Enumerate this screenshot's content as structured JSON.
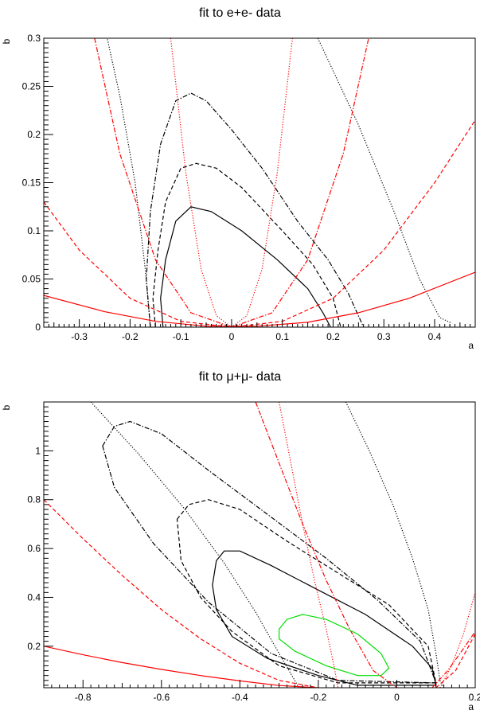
{
  "chart_data": [
    {
      "type": "line",
      "title": "fit to e+e- data",
      "xlabel": "a",
      "ylabel": "b",
      "xlim": [
        -0.37,
        0.48
      ],
      "ylim": [
        0,
        0.3
      ],
      "xticks": [
        -0.3,
        -0.2,
        -0.1,
        0,
        0.1,
        0.2,
        0.3,
        0.4
      ],
      "xtick_labels": [
        "-0.3",
        "-0.2",
        "-0.1",
        "0",
        "0.1",
        "0.2",
        "0.3",
        "0.4"
      ],
      "yticks": [
        0,
        0.05,
        0.1,
        0.15,
        0.2,
        0.25,
        0.3
      ],
      "ytick_labels": [
        "0",
        "0.05",
        "0.1",
        "0.15",
        "0.2",
        "0.25",
        "0.3"
      ],
      "grid": false,
      "series": [
        {
          "color": "#000000",
          "style": "solid",
          "points": [
            [
              -0.135,
              0
            ],
            [
              -0.14,
              0.03
            ],
            [
              -0.13,
              0.07
            ],
            [
              -0.11,
              0.11
            ],
            [
              -0.08,
              0.125
            ],
            [
              -0.04,
              0.12
            ],
            [
              0.02,
              0.1
            ],
            [
              0.09,
              0.07
            ],
            [
              0.15,
              0.04
            ],
            [
              0.18,
              0.015
            ],
            [
              0.195,
              0
            ]
          ]
        },
        {
          "color": "#000000",
          "style": "dashed",
          "points": [
            [
              -0.15,
              0
            ],
            [
              -0.155,
              0.03
            ],
            [
              -0.145,
              0.08
            ],
            [
              -0.13,
              0.13
            ],
            [
              -0.1,
              0.165
            ],
            [
              -0.07,
              0.17
            ],
            [
              -0.03,
              0.165
            ],
            [
              0.02,
              0.145
            ],
            [
              0.1,
              0.1
            ],
            [
              0.16,
              0.065
            ],
            [
              0.2,
              0.03
            ],
            [
              0.215,
              0
            ]
          ]
        },
        {
          "color": "#000000",
          "style": "dashdot",
          "points": [
            [
              -0.16,
              0
            ],
            [
              -0.168,
              0.05
            ],
            [
              -0.16,
              0.12
            ],
            [
              -0.14,
              0.19
            ],
            [
              -0.11,
              0.235
            ],
            [
              -0.08,
              0.243
            ],
            [
              -0.05,
              0.235
            ],
            [
              0.0,
              0.205
            ],
            [
              0.06,
              0.165
            ],
            [
              0.13,
              0.11
            ],
            [
              0.19,
              0.07
            ],
            [
              0.23,
              0.035
            ],
            [
              0.26,
              0
            ]
          ]
        },
        {
          "color": "#000000",
          "style": "dotted",
          "points": [
            [
              -0.16,
              0
            ],
            [
              -0.17,
              0.06
            ],
            [
              -0.19,
              0.15
            ],
            [
              -0.22,
              0.24
            ],
            [
              -0.245,
              0.3
            ]
          ]
        },
        {
          "color": "#000000",
          "style": "dotted",
          "points": [
            [
              0.17,
              0.3
            ],
            [
              0.25,
              0.21
            ],
            [
              0.32,
              0.12
            ],
            [
              0.37,
              0.05
            ],
            [
              0.41,
              0.01
            ],
            [
              0.43,
              0.005
            ],
            [
              0.43,
              0
            ]
          ]
        },
        {
          "color": "#ff0000",
          "style": "solid",
          "points": [
            [
              -0.37,
              0.033
            ],
            [
              -0.25,
              0.016
            ],
            [
              -0.15,
              0.006
            ],
            [
              -0.05,
              0.001
            ],
            [
              0.05,
              0.001
            ],
            [
              0.15,
              0.005
            ],
            [
              0.25,
              0.015
            ],
            [
              0.35,
              0.03
            ],
            [
              0.48,
              0.057
            ]
          ]
        },
        {
          "color": "#ff0000",
          "style": "dashed",
          "points": [
            [
              -0.37,
              0.13
            ],
            [
              -0.3,
              0.08
            ],
            [
              -0.2,
              0.03
            ],
            [
              -0.1,
              0.006
            ],
            [
              0,
              0
            ],
            [
              0.1,
              0.006
            ],
            [
              0.2,
              0.03
            ],
            [
              0.3,
              0.08
            ],
            [
              0.4,
              0.15
            ],
            [
              0.48,
              0.215
            ]
          ]
        },
        {
          "color": "#ff0000",
          "style": "dashdot",
          "points": [
            [
              -0.27,
              0.3
            ],
            [
              -0.22,
              0.18
            ],
            [
              -0.15,
              0.07
            ],
            [
              -0.08,
              0.015
            ],
            [
              0,
              0
            ],
            [
              0.08,
              0.015
            ],
            [
              0.15,
              0.07
            ],
            [
              0.22,
              0.18
            ],
            [
              0.27,
              0.3
            ]
          ]
        },
        {
          "color": "#ff0000",
          "style": "dotted",
          "points": [
            [
              -0.12,
              0.3
            ],
            [
              -0.09,
              0.16
            ],
            [
              -0.06,
              0.06
            ],
            [
              -0.03,
              0.012
            ],
            [
              0,
              0
            ],
            [
              0.03,
              0.012
            ],
            [
              0.06,
              0.06
            ],
            [
              0.09,
              0.16
            ],
            [
              0.12,
              0.3
            ]
          ]
        }
      ]
    },
    {
      "type": "line",
      "title": "fit to μ+μ- data",
      "xlabel": "a",
      "ylabel": "b",
      "xlim": [
        -0.9,
        0.2
      ],
      "ylim": [
        0.03,
        1.2
      ],
      "xticks": [
        -0.8,
        -0.6,
        -0.4,
        -0.2,
        0,
        0.2
      ],
      "xtick_labels": [
        "-0.8",
        "-0.6",
        "-0.4",
        "-0.2",
        "0",
        "0.2"
      ],
      "yticks": [
        0.2,
        0.4,
        0.6,
        0.8,
        1
      ],
      "ytick_labels": [
        "0.2",
        "0.4",
        "0.6",
        "0.8",
        "1"
      ],
      "grid": false,
      "series": [
        {
          "color": "#000000",
          "style": "solid",
          "closed": true,
          "points": [
            [
              -0.46,
              0.55
            ],
            [
              -0.44,
              0.59
            ],
            [
              -0.4,
              0.59
            ],
            [
              -0.32,
              0.53
            ],
            [
              -0.2,
              0.43
            ],
            [
              -0.08,
              0.33
            ],
            [
              0.04,
              0.2
            ],
            [
              0.09,
              0.11
            ],
            [
              0.1,
              0.04
            ],
            [
              0.05,
              0.04
            ],
            [
              -0.1,
              0.04
            ],
            [
              -0.2,
              0.08
            ],
            [
              -0.33,
              0.15
            ],
            [
              -0.42,
              0.24
            ],
            [
              -0.46,
              0.35
            ],
            [
              -0.47,
              0.45
            ]
          ]
        },
        {
          "color": "#000000",
          "style": "dashed",
          "closed": true,
          "points": [
            [
              -0.56,
              0.72
            ],
            [
              -0.53,
              0.78
            ],
            [
              -0.48,
              0.8
            ],
            [
              -0.4,
              0.76
            ],
            [
              -0.28,
              0.63
            ],
            [
              -0.15,
              0.5
            ],
            [
              -0.02,
              0.37
            ],
            [
              0.08,
              0.2
            ],
            [
              0.1,
              0.05
            ],
            [
              -0.15,
              0.05
            ],
            [
              -0.3,
              0.12
            ],
            [
              -0.42,
              0.26
            ],
            [
              -0.5,
              0.4
            ],
            [
              -0.55,
              0.55
            ]
          ]
        },
        {
          "color": "#000000",
          "style": "dashdot",
          "closed": true,
          "points": [
            [
              -0.75,
              1.02
            ],
            [
              -0.72,
              1.1
            ],
            [
              -0.68,
              1.12
            ],
            [
              -0.6,
              1.07
            ],
            [
              -0.48,
              0.92
            ],
            [
              -0.33,
              0.74
            ],
            [
              -0.18,
              0.56
            ],
            [
              -0.05,
              0.39
            ],
            [
              0.06,
              0.22
            ],
            [
              0.1,
              0.05
            ],
            [
              -0.15,
              0.06
            ],
            [
              -0.32,
              0.17
            ],
            [
              -0.48,
              0.38
            ],
            [
              -0.62,
              0.62
            ],
            [
              -0.72,
              0.85
            ]
          ]
        },
        {
          "color": "#000000",
          "style": "dotted",
          "points": [
            [
              -0.78,
              1.2
            ],
            [
              -0.66,
              0.99
            ],
            [
              -0.54,
              0.76
            ],
            [
              -0.44,
              0.54
            ],
            [
              -0.36,
              0.34
            ],
            [
              -0.3,
              0.17
            ],
            [
              -0.26,
              0.06
            ],
            [
              -0.25,
              0.03
            ]
          ]
        },
        {
          "color": "#000000",
          "style": "dotted",
          "points": [
            [
              -0.13,
              1.2
            ],
            [
              -0.07,
              1.0
            ],
            [
              -0.01,
              0.78
            ],
            [
              0.04,
              0.56
            ],
            [
              0.08,
              0.35
            ],
            [
              0.1,
              0.17
            ],
            [
              0.11,
              0.06
            ],
            [
              0.12,
              0.03
            ]
          ]
        },
        {
          "color": "#ff0000",
          "style": "solid",
          "points": [
            [
              -0.9,
              0.2
            ],
            [
              -0.8,
              0.165
            ],
            [
              -0.7,
              0.133
            ],
            [
              -0.6,
              0.105
            ],
            [
              -0.5,
              0.08
            ],
            [
              -0.4,
              0.058
            ],
            [
              -0.3,
              0.039
            ],
            [
              -0.2,
              0.03
            ]
          ]
        },
        {
          "color": "#ff0000",
          "style": "dashed",
          "points": [
            [
              -0.9,
              0.8
            ],
            [
              -0.8,
              0.64
            ],
            [
              -0.7,
              0.49
            ],
            [
              -0.6,
              0.35
            ],
            [
              -0.5,
              0.23
            ],
            [
              -0.4,
              0.13
            ],
            [
              -0.3,
              0.06
            ],
            [
              -0.2,
              0.03
            ]
          ]
        },
        {
          "color": "#ff0000",
          "style": "dashed",
          "points": [
            [
              0.1,
              0.03
            ],
            [
              0.15,
              0.1
            ],
            [
              0.2,
              0.25
            ]
          ]
        },
        {
          "color": "#ff0000",
          "style": "dashdot",
          "points": [
            [
              -0.36,
              1.2
            ],
            [
              -0.3,
              0.95
            ],
            [
              -0.24,
              0.7
            ],
            [
              -0.18,
              0.47
            ],
            [
              -0.12,
              0.27
            ],
            [
              -0.06,
              0.1
            ],
            [
              0.0,
              0.03
            ]
          ]
        },
        {
          "color": "#ff0000",
          "style": "dashdot",
          "points": [
            [
              0.09,
              0.03
            ],
            [
              0.13,
              0.1
            ],
            [
              0.17,
              0.19
            ],
            [
              0.2,
              0.26
            ]
          ]
        },
        {
          "color": "#ff0000",
          "style": "dotted",
          "points": [
            [
              -0.3,
              1.2
            ],
            [
              -0.27,
              0.95
            ],
            [
              -0.24,
              0.7
            ],
            [
              -0.21,
              0.47
            ],
            [
              -0.18,
              0.27
            ],
            [
              -0.16,
              0.12
            ],
            [
              -0.15,
              0.03
            ]
          ]
        },
        {
          "color": "#ff0000",
          "style": "dotted",
          "points": [
            [
              0.11,
              0.03
            ],
            [
              0.14,
              0.12
            ],
            [
              0.17,
              0.25
            ],
            [
              0.2,
              0.42
            ]
          ]
        },
        {
          "color": "#00dd00",
          "style": "solid",
          "closed": true,
          "points": [
            [
              -0.3,
              0.27
            ],
            [
              -0.28,
              0.31
            ],
            [
              -0.24,
              0.33
            ],
            [
              -0.18,
              0.31
            ],
            [
              -0.1,
              0.25
            ],
            [
              -0.04,
              0.17
            ],
            [
              -0.02,
              0.11
            ],
            [
              -0.04,
              0.08
            ],
            [
              -0.1,
              0.08
            ],
            [
              -0.18,
              0.12
            ],
            [
              -0.26,
              0.18
            ],
            [
              -0.3,
              0.23
            ]
          ]
        }
      ]
    }
  ]
}
